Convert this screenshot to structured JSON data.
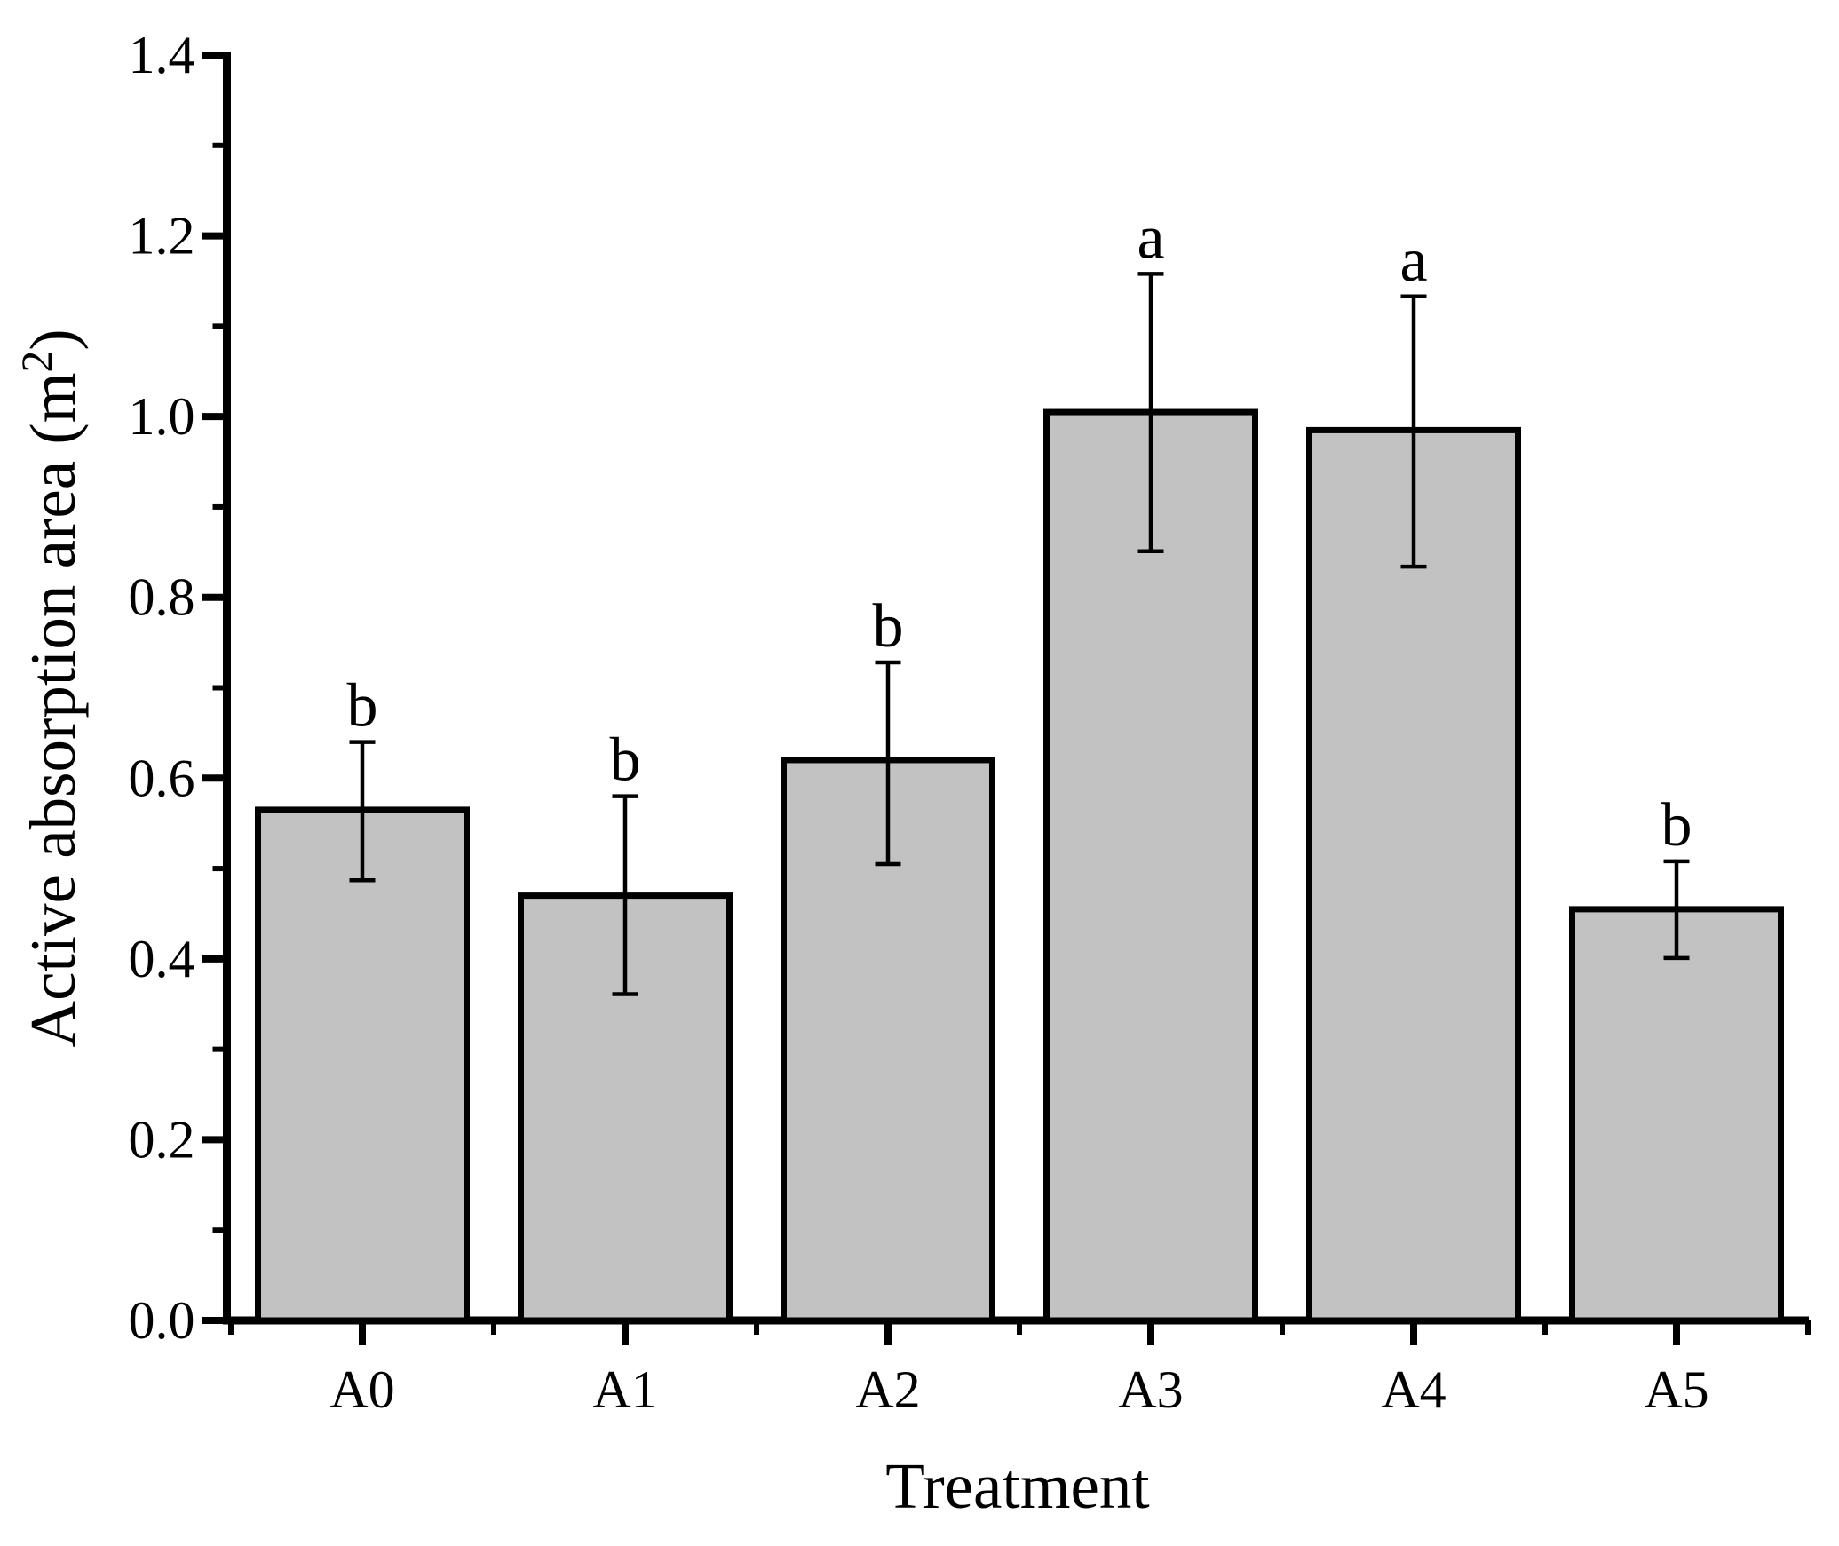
{
  "figure": {
    "background": "#ffffff",
    "foreground": "#000000"
  },
  "chart_data": {
    "type": "bar",
    "title": "",
    "xlabel": "Treatment",
    "ylabel": "Active absorption area (m2)",
    "ylabel_prefix": "Active absorption area (m",
    "ylabel_superscript": "2",
    "ylabel_suffix": ")",
    "categories": [
      "A0",
      "A1",
      "A2",
      "A3",
      "A4",
      "A5"
    ],
    "values": [
      0.565,
      0.47,
      0.62,
      1.005,
      0.985,
      0.455
    ],
    "error_upper": [
      0.64,
      0.58,
      0.728,
      1.158,
      1.133,
      0.508
    ],
    "error_lower": [
      0.487,
      0.361,
      0.505,
      0.851,
      0.834,
      0.401
    ],
    "sig_letters": [
      "b",
      "b",
      "b",
      "a",
      "a",
      "b"
    ],
    "ylim": [
      0.0,
      1.4
    ],
    "y_major_ticks": [
      0.0,
      0.2,
      0.4,
      0.6,
      0.8,
      1.0,
      1.2,
      1.4
    ],
    "y_tick_labels": [
      "0.0",
      "0.2",
      "0.4",
      "0.6",
      "0.8",
      "1.0",
      "1.2",
      "1.4"
    ],
    "y_minor_step": 0.1,
    "grid": false,
    "legend": false,
    "bar_fill": "#c2c2c2",
    "bar_border": "#000000",
    "error_color": "#000000"
  }
}
